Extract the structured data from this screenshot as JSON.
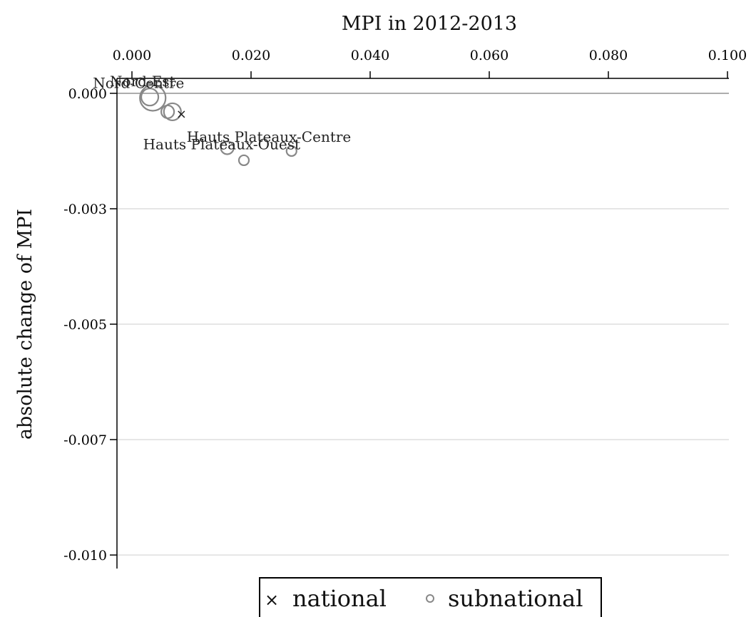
{
  "chart_data": {
    "type": "scatter",
    "xlabel": "MPI in 2012-2013",
    "ylabel": "absolute change of MPI",
    "x_ticks": [
      "0.000",
      "0.020",
      "0.040",
      "0.060",
      "0.080",
      "0.100"
    ],
    "y_ticks": [
      "0.000",
      "-0.003",
      "-0.005",
      "-0.007",
      "-0.010"
    ],
    "xlim": [
      -0.0025,
      0.101
    ],
    "ylim": [
      -0.0102,
      0.00013
    ],
    "x_tick_values": [
      0.0,
      0.02,
      0.04,
      0.06,
      0.08,
      0.1
    ],
    "y_tick_values": [
      0.0,
      -0.0025,
      -0.005,
      -0.0075,
      -0.01
    ],
    "grid": "horizontal",
    "legend_position": "bottom-center",
    "legend": {
      "national": "national",
      "subnational": "subnational"
    },
    "national": {
      "x": 0.0083,
      "y": -0.00045,
      "marker": "x"
    },
    "subnational": [
      {
        "name": "Nord-Centre",
        "x": 0.0035,
        "y": -0.0001,
        "size": "large",
        "label": "Nord-Centre"
      },
      {
        "name": "Nord-Est",
        "x": 0.003,
        "y": -8e-05,
        "size": "medium",
        "label": "Nord-Est"
      },
      {
        "name": "",
        "x": 0.006,
        "y": -0.0004,
        "size": "small",
        "label": ""
      },
      {
        "name": "",
        "x": 0.0068,
        "y": -0.0004,
        "size": "medium",
        "label": ""
      },
      {
        "name": "Hauts Plateaux-Ouest",
        "x": 0.016,
        "y": -0.00118,
        "size": "small",
        "label": "Hauts Plateaux-Ouest"
      },
      {
        "name": "",
        "x": 0.0188,
        "y": -0.00145,
        "size": "xsmall",
        "label": ""
      },
      {
        "name": "Hauts Plateaux-Centre",
        "x": 0.0268,
        "y": -0.00125,
        "size": "xsmall",
        "label": "Hauts Plateaux-Centre"
      }
    ],
    "colors": {
      "subnational": "#888888",
      "national": "#222222",
      "grid": "#e6e6e6",
      "axis": "#000000"
    }
  }
}
